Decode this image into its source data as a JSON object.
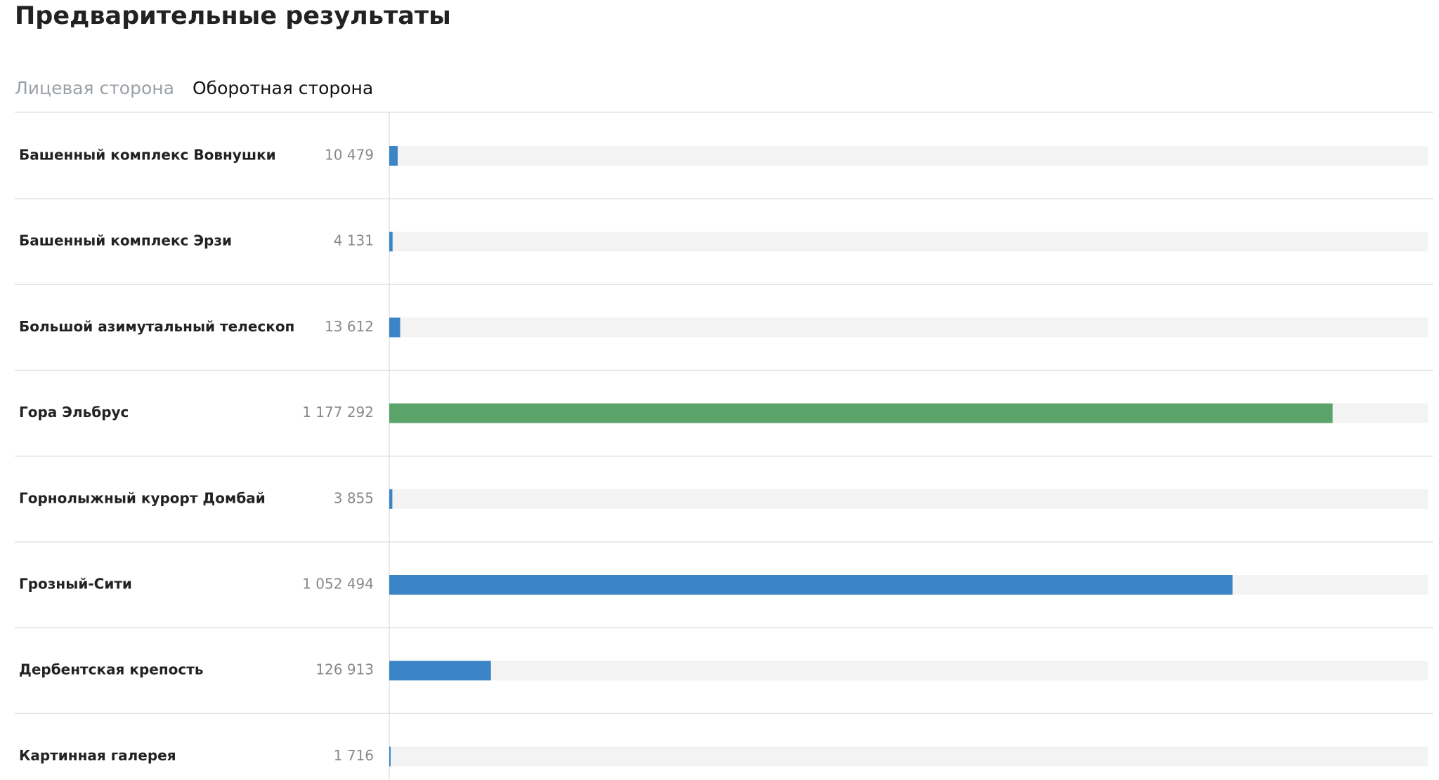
{
  "header": {
    "title": "Предварительные результаты"
  },
  "tabs": [
    "Лицевая сторона",
    "Оборотная сторона"
  ],
  "chart_data": {
    "type": "bar",
    "orientation": "horizontal",
    "categories": [
      "Башенный комплекс Вовнушки",
      "Башенный комплекс Эрзи",
      "Большой азимутальный телескоп",
      "Гора Эльбрус",
      "Горнолыжный курорт Домбай",
      "Грозный-Сити",
      "Дербентская крепость",
      "Картинная галерея"
    ],
    "values": [
      10479,
      4131,
      13612,
      1177292,
      3855,
      1052494,
      126913,
      1716
    ],
    "value_labels": [
      "10 479",
      "4 131",
      "13 612",
      "1 177 292",
      "3 855",
      "1 052 494",
      "126 913",
      "1 716"
    ],
    "colors": [
      "#3b85c7",
      "#3b85c7",
      "#3b85c7",
      "#5aa469",
      "#3b85c7",
      "#3b85c7",
      "#3b85c7",
      "#3b85c7"
    ],
    "xlim": [
      0,
      1296000
    ]
  }
}
